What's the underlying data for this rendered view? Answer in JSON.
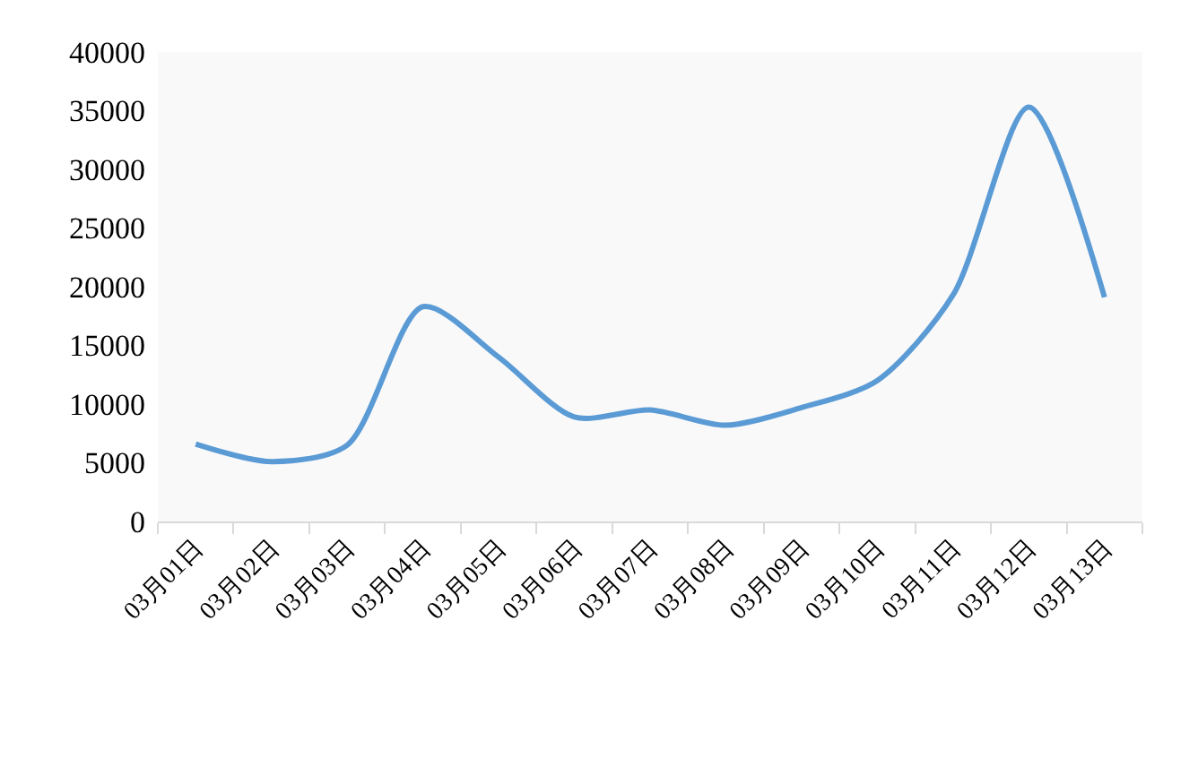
{
  "chart_data": {
    "type": "line",
    "categories": [
      "03月01日",
      "03月02日",
      "03月03日",
      "03月04日",
      "03月05日",
      "03月06日",
      "03月07日",
      "03月08日",
      "03月09日",
      "03月10日",
      "03月11日",
      "03月12日",
      "03月13日"
    ],
    "series": [
      {
        "color": "#5b9bd5",
        "values": [
          6600,
          5100,
          6500,
          18300,
          14000,
          8900,
          9500,
          8200,
          9700,
          12000,
          19300,
          35300,
          19100
        ]
      }
    ],
    "ylim": [
      0,
      40000
    ],
    "yticks": [
      0,
      5000,
      10000,
      15000,
      20000,
      25000,
      30000,
      35000,
      40000
    ],
    "line_style": "solid"
  }
}
